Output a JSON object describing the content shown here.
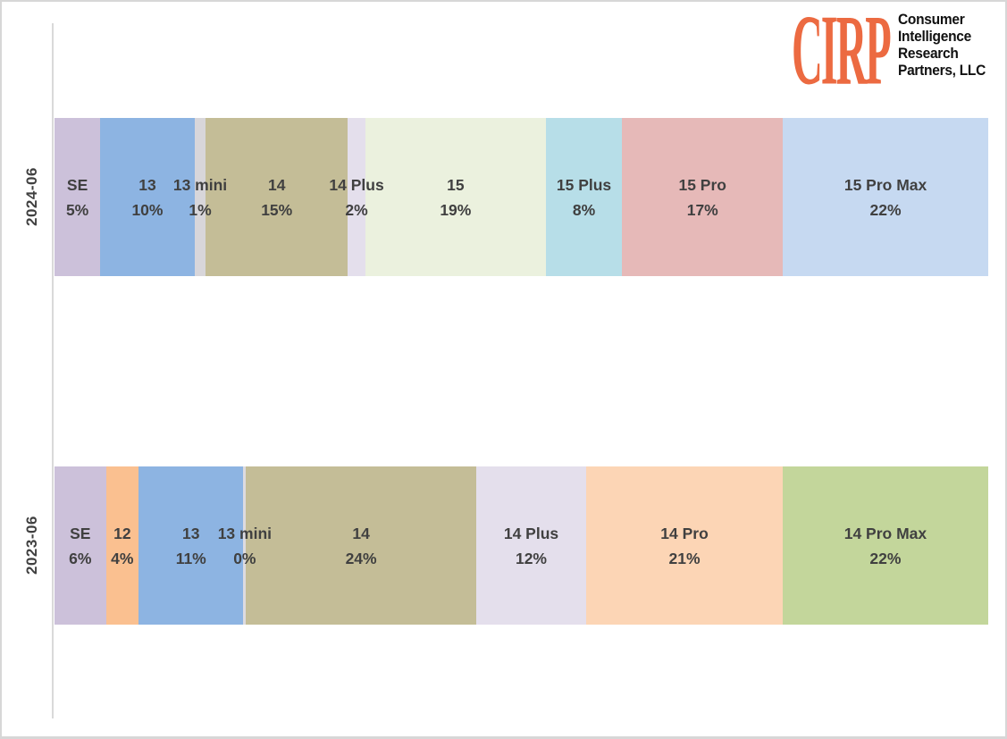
{
  "logo": {
    "acronym": "CIRP",
    "name_lines": [
      "Consumer",
      "Intelligence",
      "Research",
      "Partners, LLC"
    ],
    "accent_color": "#ec6a41",
    "text_color": "#111111"
  },
  "chart_data": {
    "type": "bar",
    "subtype": "stacked-horizontal-100pct",
    "title": "",
    "xlabel": "",
    "ylabel": "",
    "unit": "percent share of iPhone sales mix",
    "legend": "none",
    "grid": false,
    "axis_color": "#d9d9d9",
    "label_color": "#404040",
    "categories": [
      "2024-06",
      "2023-06"
    ],
    "rows": [
      {
        "category": "2024-06",
        "segments": [
          {
            "label": "SE",
            "value": 5,
            "value_label": "5%",
            "color": "#ccc1da",
            "width_pct": 4.9
          },
          {
            "label": "13",
            "value": 10,
            "value_label": "10%",
            "color": "#8db4e2",
            "width_pct": 10.1
          },
          {
            "label": "13 mini",
            "value": 1,
            "value_label": "1%",
            "color": "#d8d6da",
            "width_pct": 1.2
          },
          {
            "label": "14",
            "value": 15,
            "value_label": "15%",
            "color": "#c4bd97",
            "width_pct": 15.2
          },
          {
            "label": "14 Plus",
            "value": 2,
            "value_label": "2%",
            "color": "#e4dfec",
            "width_pct": 1.9
          },
          {
            "label": "15",
            "value": 19,
            "value_label": "19%",
            "color": "#ebf1de",
            "width_pct": 19.3
          },
          {
            "label": "15 Plus",
            "value": 8,
            "value_label": "8%",
            "color": "#b7dee8",
            "width_pct": 8.2
          },
          {
            "label": "15 Pro",
            "value": 17,
            "value_label": "17%",
            "color": "#e6b9b8",
            "width_pct": 17.2
          },
          {
            "label": "15 Pro Max",
            "value": 22,
            "value_label": "22%",
            "color": "#c6d9f1",
            "width_pct": 22.0
          }
        ]
      },
      {
        "category": "2023-06",
        "segments": [
          {
            "label": "SE",
            "value": 6,
            "value_label": "6%",
            "color": "#ccc1da",
            "width_pct": 5.5
          },
          {
            "label": "12",
            "value": 4,
            "value_label": "4%",
            "color": "#fac090",
            "width_pct": 3.5
          },
          {
            "label": "13",
            "value": 11,
            "value_label": "11%",
            "color": "#8db4e2",
            "width_pct": 11.2
          },
          {
            "label": "13 mini",
            "value": 0,
            "value_label": "0%",
            "color": "#dddbe0",
            "width_pct": 0.3
          },
          {
            "label": "14",
            "value": 24,
            "value_label": "24%",
            "color": "#c4bd97",
            "width_pct": 24.6
          },
          {
            "label": "14 Plus",
            "value": 12,
            "value_label": "12%",
            "color": "#e4dfec",
            "width_pct": 11.8
          },
          {
            "label": "14 Pro",
            "value": 21,
            "value_label": "21%",
            "color": "#fcd5b5",
            "width_pct": 21.0
          },
          {
            "label": "14 Pro Max",
            "value": 22,
            "value_label": "22%",
            "color": "#c3d69b",
            "width_pct": 22.0
          }
        ]
      }
    ]
  }
}
